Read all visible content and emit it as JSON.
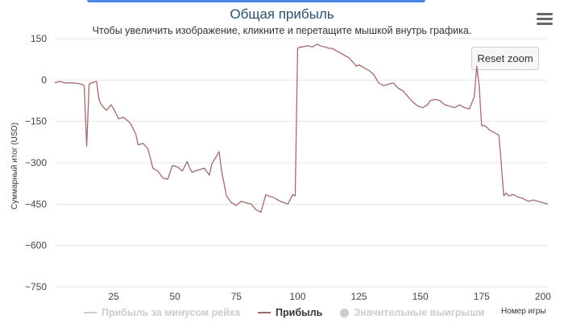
{
  "chart_data": {
    "type": "line",
    "title": "Общая прибыль",
    "subtitle": "Чтобы увеличить изображение, кликните и перетащите мышкой внутрь графика.",
    "ylabel": "Суммарный итог (USD)",
    "xlabel": "Номер игры",
    "xlim": [
      1,
      202
    ],
    "ylim": [
      -750,
      150
    ],
    "xticks": [
      25,
      50,
      75,
      100,
      125,
      150,
      175,
      200
    ],
    "yticks": [
      150,
      0,
      -150,
      -300,
      -450,
      -600,
      -750
    ],
    "grid": "horizontal",
    "legend_position": "bottom",
    "series": [
      {
        "name": "Прибыль",
        "color": "#a36b6b",
        "x": [
          1,
          3,
          5,
          8,
          10,
          12,
          13,
          14,
          15,
          16,
          18,
          19,
          20,
          21,
          22,
          24,
          25,
          27,
          29,
          31,
          32,
          34,
          35,
          37,
          39,
          41,
          43,
          45,
          47,
          49,
          51,
          53,
          55,
          56,
          57,
          58,
          60,
          62,
          64,
          65,
          66,
          68,
          69,
          71,
          73,
          75,
          77,
          79,
          81,
          83,
          85,
          87,
          88,
          90,
          93,
          96,
          98,
          99,
          100,
          101,
          102,
          104,
          106,
          107,
          108,
          109,
          111,
          113,
          114,
          115,
          117,
          119,
          121,
          123,
          124,
          125,
          127,
          129,
          131,
          133,
          135,
          137,
          139,
          141,
          143,
          145,
          147,
          149,
          151,
          153,
          154,
          156,
          158,
          160,
          162,
          164,
          166,
          168,
          170,
          172,
          173,
          174,
          175,
          176,
          177,
          178,
          180,
          182,
          183,
          184,
          185,
          186,
          188,
          190,
          192,
          194,
          196,
          198,
          200,
          202
        ],
        "y": [
          -10,
          -5,
          -10,
          -10,
          -12,
          -15,
          -20,
          -240,
          -15,
          -10,
          -5,
          -70,
          -90,
          -100,
          -110,
          -90,
          -105,
          -140,
          -135,
          -150,
          -160,
          -195,
          -235,
          -230,
          -250,
          -320,
          -330,
          -355,
          -360,
          -310,
          -315,
          -330,
          -295,
          -320,
          -335,
          -330,
          -325,
          -320,
          -345,
          -305,
          -290,
          -260,
          -330,
          -420,
          -445,
          -455,
          -440,
          -445,
          -450,
          -470,
          -480,
          -415,
          -420,
          -425,
          -440,
          -450,
          -415,
          -420,
          115,
          120,
          120,
          125,
          120,
          125,
          130,
          125,
          120,
          115,
          115,
          110,
          100,
          90,
          80,
          60,
          50,
          55,
          45,
          35,
          20,
          -10,
          -20,
          -15,
          -10,
          -30,
          -40,
          -60,
          -80,
          -95,
          -100,
          -90,
          -75,
          -70,
          -75,
          -90,
          -95,
          -100,
          -90,
          -100,
          -105,
          -60,
          50,
          -20,
          -165,
          -165,
          -170,
          -180,
          -190,
          -200,
          -300,
          -420,
          -410,
          -420,
          -415,
          -425,
          -430,
          -440,
          -435,
          -440,
          -445,
          -450
        ]
      },
      {
        "name": "Прибыль за минусом рейка",
        "color": "#cccccc",
        "hidden": true
      },
      {
        "name": "Значительные выигрыши",
        "color": "#cccccc",
        "hidden": true
      }
    ]
  },
  "legend": {
    "item1": "Прибыль за минусом рейка",
    "item2": "Прибыль",
    "item3": "Значительные выигрыши"
  },
  "buttons": {
    "reset_zoom": "Reset zoom"
  }
}
